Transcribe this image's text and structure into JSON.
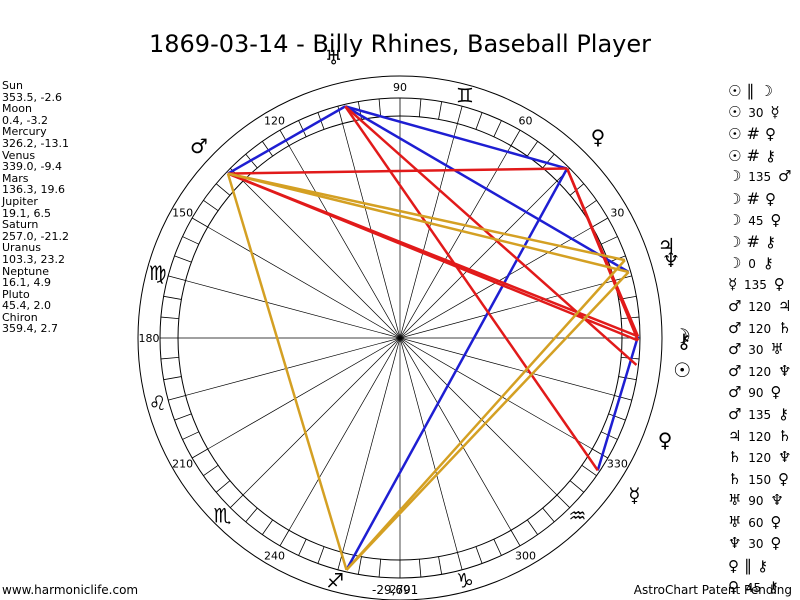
{
  "title": "1869-03-14 - Billy Rhines, Baseball Player",
  "positions": [
    {
      "name": "Sun",
      "value": "353.5, -2.6"
    },
    {
      "name": "Moon",
      "value": "0.4, -3.2"
    },
    {
      "name": "Mercury",
      "value": "326.2, -13.1"
    },
    {
      "name": "Venus",
      "value": "339.0, -9.4"
    },
    {
      "name": "Mars",
      "value": "136.3, 19.6"
    },
    {
      "name": "Jupiter",
      "value": "19.1, 6.5"
    },
    {
      "name": "Saturn",
      "value": "257.0, -21.2"
    },
    {
      "name": "Uranus",
      "value": "103.3, 23.2"
    },
    {
      "name": "Neptune",
      "value": "16.1, 4.9"
    },
    {
      "name": "Pluto",
      "value": "45.4, 2.0"
    },
    {
      "name": "Chiron",
      "value": "359.4, 2.7"
    }
  ],
  "aspects": [
    {
      "p1": "☉",
      "a": "∥",
      "p2": "☽",
      "aspect_is_symbol": true
    },
    {
      "p1": "☉",
      "a": "30",
      "p2": "☿"
    },
    {
      "p1": "☉",
      "a": "#",
      "p2": "♀",
      "aspect_is_symbol": true
    },
    {
      "p1": "☉",
      "a": "#",
      "p2": "⚷",
      "aspect_is_symbol": true
    },
    {
      "p1": "☽",
      "a": "135",
      "p2": "♂"
    },
    {
      "p1": "☽",
      "a": "#",
      "p2": "♀",
      "aspect_is_symbol": true
    },
    {
      "p1": "☽",
      "a": "45",
      "p2": "♀"
    },
    {
      "p1": "☽",
      "a": "#",
      "p2": "⚷",
      "aspect_is_symbol": true
    },
    {
      "p1": "☽",
      "a": "0",
      "p2": "⚷"
    },
    {
      "p1": "☿",
      "a": "135",
      "p2": "♀"
    },
    {
      "p1": "♂",
      "a": "120",
      "p2": "♃"
    },
    {
      "p1": "♂",
      "a": "120",
      "p2": "♄"
    },
    {
      "p1": "♂",
      "a": "30",
      "p2": "♅"
    },
    {
      "p1": "♂",
      "a": "120",
      "p2": "♆"
    },
    {
      "p1": "♂",
      "a": "90",
      "p2": "♀"
    },
    {
      "p1": "♂",
      "a": "135",
      "p2": "⚷"
    },
    {
      "p1": "♃",
      "a": "120",
      "p2": "♄"
    },
    {
      "p1": "♄",
      "a": "120",
      "p2": "♆"
    },
    {
      "p1": "♄",
      "a": "150",
      "p2": "♀"
    },
    {
      "p1": "♅",
      "a": "90",
      "p2": "♆"
    },
    {
      "p1": "♅",
      "a": "60",
      "p2": "♀"
    },
    {
      "p1": "♆",
      "a": "30",
      "p2": "♀"
    },
    {
      "p1": "♀",
      "a": "∥",
      "p2": "⚷",
      "aspect_is_symbol": true
    },
    {
      "p1": "♀",
      "a": "45",
      "p2": "⚷"
    }
  ],
  "wheel": {
    "degree_labels": [
      {
        "deg": 0,
        "text": ""
      },
      {
        "deg": 30,
        "text": "30"
      },
      {
        "deg": 60,
        "text": "60"
      },
      {
        "deg": 90,
        "text": "90"
      },
      {
        "deg": 120,
        "text": "120"
      },
      {
        "deg": 150,
        "text": "150"
      },
      {
        "deg": 180,
        "text": "180"
      },
      {
        "deg": 210,
        "text": "210"
      },
      {
        "deg": 240,
        "text": "240"
      },
      {
        "deg": 270,
        "text": "270"
      },
      {
        "deg": 300,
        "text": "300"
      },
      {
        "deg": 330,
        "text": "330"
      }
    ],
    "signs": [
      {
        "deg": 75,
        "glyph": "♊"
      },
      {
        "deg": 165,
        "glyph": "♍"
      },
      {
        "deg": 195,
        "glyph": "♌"
      },
      {
        "deg": 225,
        "glyph": "♏"
      },
      {
        "deg": 255,
        "glyph": "♐"
      },
      {
        "deg": 285,
        "glyph": "♑"
      },
      {
        "deg": 315,
        "glyph": "♒"
      }
    ],
    "planets": [
      {
        "id": "sun",
        "glyph": "☉",
        "lon": 353.5
      },
      {
        "id": "moon",
        "glyph": "☽",
        "lon": 0.4
      },
      {
        "id": "mercury",
        "glyph": "☿",
        "lon": 326.2
      },
      {
        "id": "venus",
        "glyph": "♀",
        "lon": 339.0
      },
      {
        "id": "mars",
        "glyph": "♂",
        "lon": 136.3
      },
      {
        "id": "jupiter",
        "glyph": "♃",
        "lon": 19.1
      },
      {
        "id": "saturn",
        "glyph": "♄",
        "lon": 257.0
      },
      {
        "id": "uranus",
        "glyph": "♅",
        "lon": 103.3
      },
      {
        "id": "neptune",
        "glyph": "♆",
        "lon": 16.1
      },
      {
        "id": "pluto",
        "glyph": "♀",
        "lon": 45.4
      },
      {
        "id": "chiron",
        "glyph": "⚷",
        "lon": 359.4
      }
    ],
    "aspect_lines": [
      {
        "a": "uranus",
        "b": "pluto",
        "color": "#1e1ed2"
      },
      {
        "a": "uranus",
        "b": "mars",
        "color": "#1e1ed2"
      },
      {
        "a": "uranus",
        "b": "neptune",
        "color": "#1e1ed2"
      },
      {
        "a": "pluto",
        "b": "saturn",
        "color": "#1e1ed2"
      },
      {
        "a": "moon",
        "b": "mercury",
        "color": "#1e1ed2"
      },
      {
        "a": "mars",
        "b": "pluto",
        "color": "#e11a1a"
      },
      {
        "a": "mars",
        "b": "moon",
        "color": "#e11a1a"
      },
      {
        "a": "mars",
        "b": "chiron",
        "color": "#e11a1a"
      },
      {
        "a": "uranus",
        "b": "sun",
        "color": "#e11a1a"
      },
      {
        "a": "uranus",
        "b": "mercury",
        "color": "#e11a1a"
      },
      {
        "a": "pluto",
        "b": "chiron",
        "color": "#e11a1a"
      },
      {
        "a": "pluto",
        "b": "moon",
        "color": "#e11a1a"
      },
      {
        "a": "mars",
        "b": "saturn",
        "color": "#d4a023"
      },
      {
        "a": "mars",
        "b": "jupiter",
        "color": "#d4a023"
      },
      {
        "a": "mars",
        "b": "neptune",
        "color": "#d4a023"
      },
      {
        "a": "saturn",
        "b": "jupiter",
        "color": "#d4a023"
      },
      {
        "a": "saturn",
        "b": "neptune",
        "color": "#d4a023"
      }
    ]
  },
  "footer": {
    "website": "www.harmoniclife.com",
    "center": "-29,691",
    "right": "AstroChart Patent Pending"
  }
}
